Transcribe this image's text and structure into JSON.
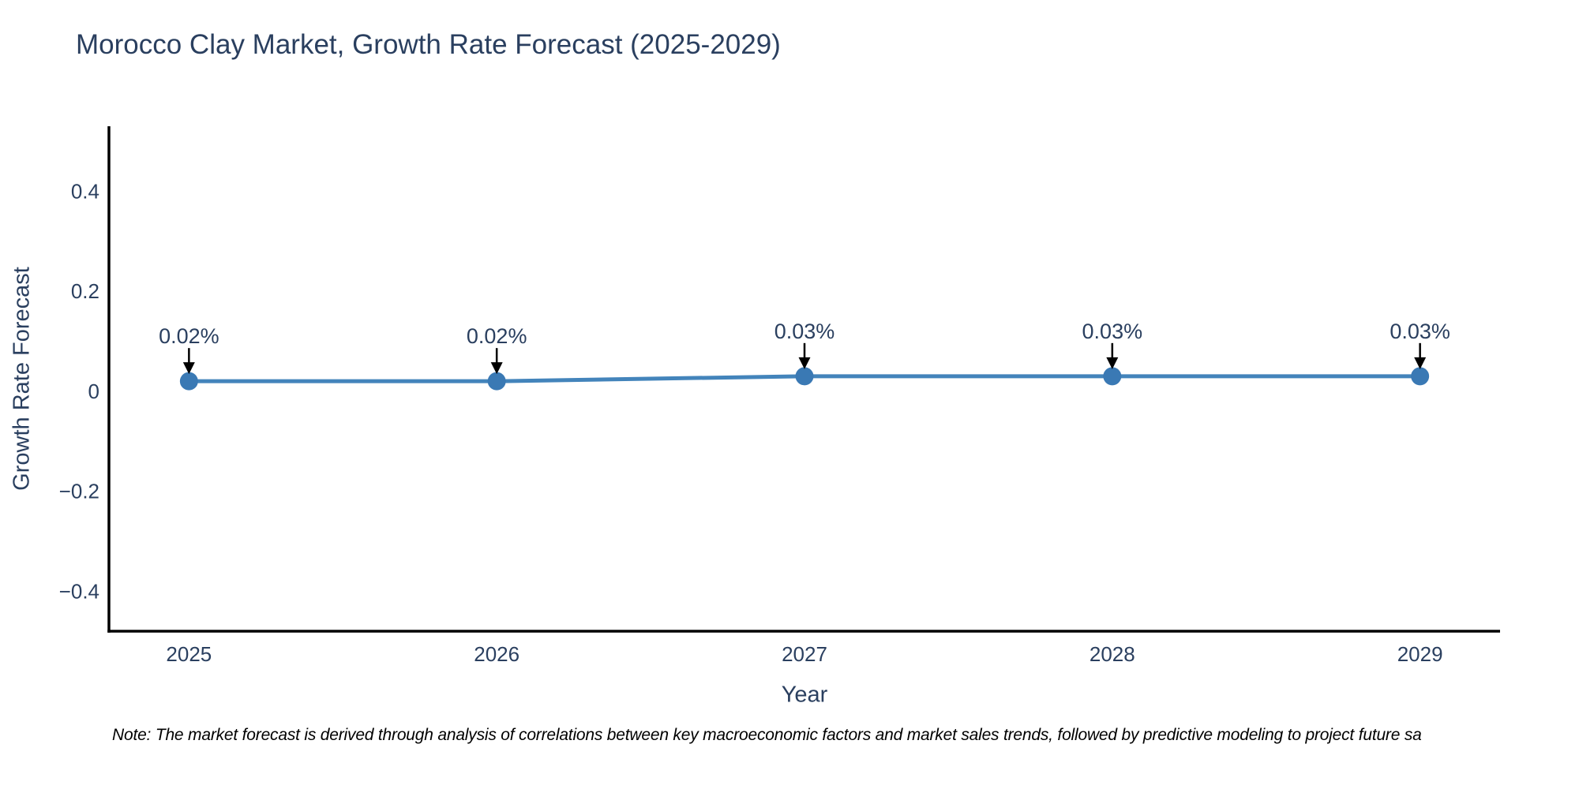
{
  "page": {
    "title": "Morocco Clay Market, Growth Rate Forecast (2025-2029)",
    "note": "Note: The market forecast is derived through analysis of correlations between key macroeconomic factors and market sales trends, followed by predictive modeling to project future sa"
  },
  "colors": {
    "background": "#ffffff",
    "title_text": "#2a3f5f",
    "tick_text": "#2a3f5f",
    "axis_label_text": "#2a3f5f",
    "axis_line": "#000000",
    "series_line": "#4384bb",
    "series_marker": "#3a79b4",
    "annotation_text": "#2a3f5f",
    "annotation_arrow": "#000000",
    "note_text": "#000000"
  },
  "chart_data": {
    "type": "line",
    "title": "Morocco Clay Market, Growth Rate Forecast (2025-2029)",
    "xlabel": "Year",
    "ylabel": "Growth Rate Forecast",
    "x": [
      2025,
      2026,
      2027,
      2028,
      2029
    ],
    "series": [
      {
        "name": "Growth Rate Forecast",
        "values": [
          0.02,
          0.02,
          0.03,
          0.03,
          0.03
        ],
        "point_labels": [
          "0.02%",
          "0.02%",
          "0.03%",
          "0.03%",
          "0.03%"
        ]
      }
    ],
    "xticks": [
      {
        "value": 2025,
        "label": "2025"
      },
      {
        "value": 2026,
        "label": "2026"
      },
      {
        "value": 2027,
        "label": "2027"
      },
      {
        "value": 2028,
        "label": "2028"
      },
      {
        "value": 2029,
        "label": "2029"
      }
    ],
    "yticks": [
      {
        "value": 0.4,
        "label": "0.4"
      },
      {
        "value": 0.2,
        "label": "0.2"
      },
      {
        "value": 0,
        "label": "0"
      },
      {
        "value": -0.2,
        "label": "−0.2"
      },
      {
        "value": -0.4,
        "label": "−0.4"
      }
    ],
    "xlim": [
      2024.74,
      2029.26
    ],
    "ylim": [
      -0.48,
      0.53
    ],
    "grid": false,
    "legend_position": "none",
    "annotation_style": "arrow-down"
  }
}
